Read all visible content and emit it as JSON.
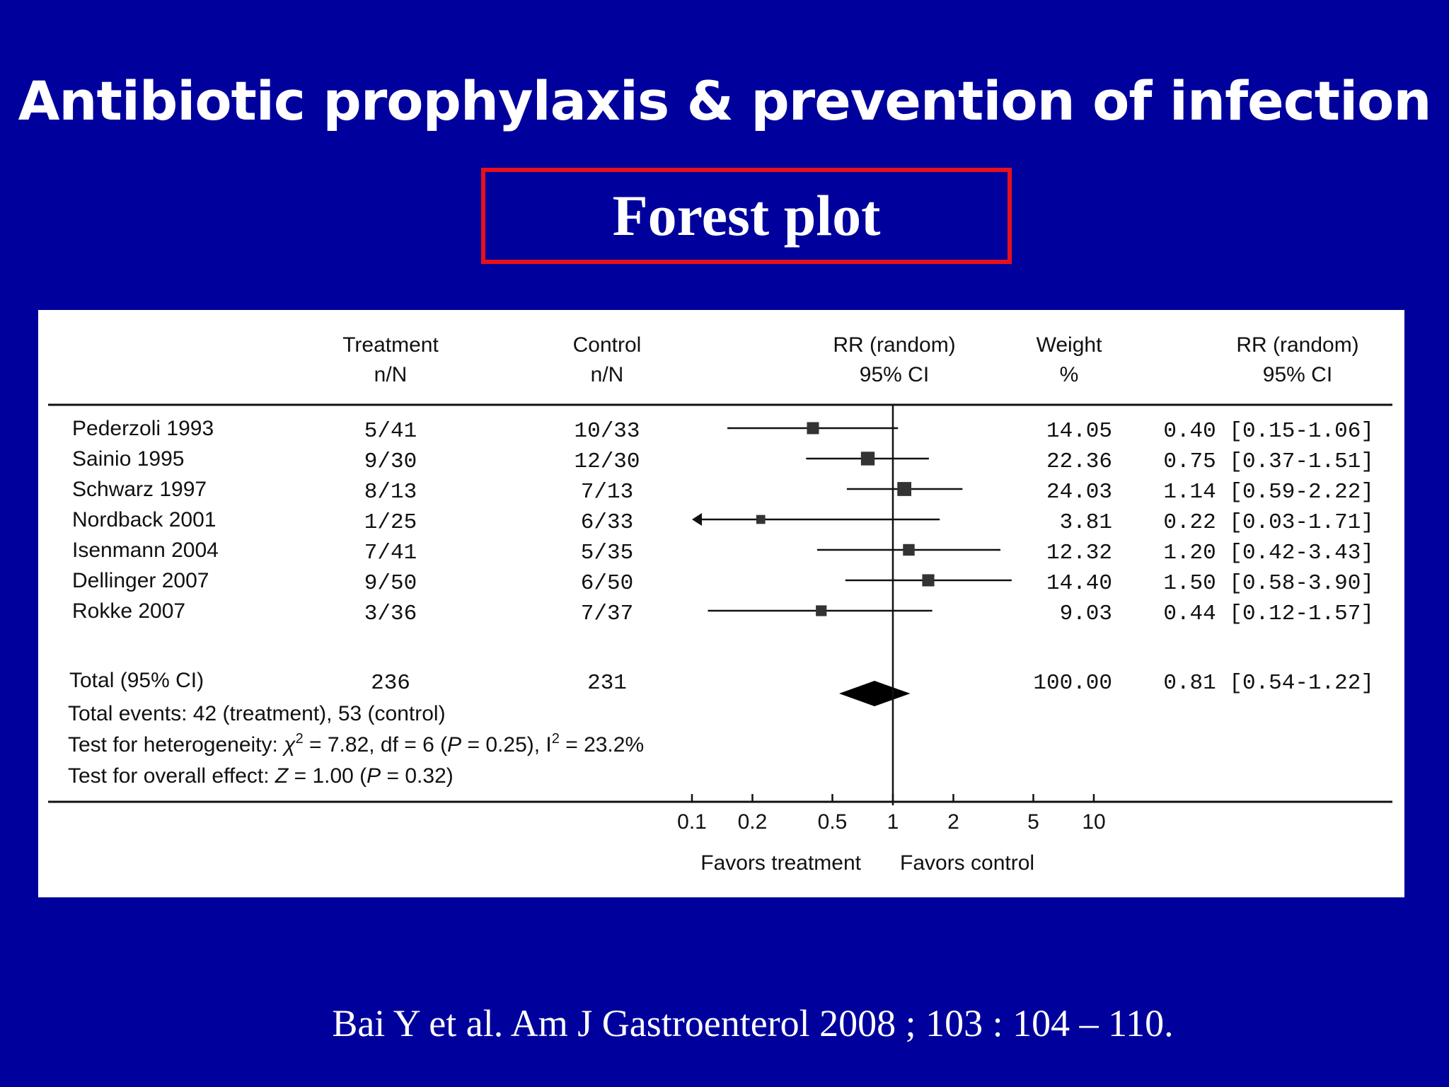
{
  "slide": {
    "title": "Antibiotic prophylaxis & prevention of infection",
    "subtitle": "Forest plot",
    "citation": "Bai Y et al. Am J Gastroenterol 2008 ; 103 : 104 – 110."
  },
  "colors": {
    "background": "#00009c",
    "subtitle_border": "#e8101a",
    "panel": "#ffffff",
    "marks": "#111111"
  },
  "chart_data": {
    "type": "forest",
    "xscale": "log",
    "xlim": [
      0.1,
      10
    ],
    "reference_line": 1,
    "headers": {
      "treatment": [
        "Treatment",
        "n/N"
      ],
      "control": [
        "Control",
        "n/N"
      ],
      "plot": [
        "RR (random)",
        "95% CI"
      ],
      "weight": [
        "Weight",
        "%"
      ],
      "estimate": [
        "RR (random)",
        "95% CI"
      ]
    },
    "studies": [
      {
        "name": "Pederzoli 1993",
        "treatment": "5/41",
        "control": "10/33",
        "weight": "14.05",
        "rr": 0.4,
        "lo": 0.15,
        "hi": 1.06,
        "ci_text": "0.40 [0.15-1.06]"
      },
      {
        "name": "Sainio 1995",
        "treatment": "9/30",
        "control": "12/30",
        "weight": "22.36",
        "rr": 0.75,
        "lo": 0.37,
        "hi": 1.51,
        "ci_text": "0.75 [0.37-1.51]"
      },
      {
        "name": "Schwarz 1997",
        "treatment": "8/13",
        "control": "7/13",
        "weight": "24.03",
        "rr": 1.14,
        "lo": 0.59,
        "hi": 2.22,
        "ci_text": "1.14 [0.59-2.22]"
      },
      {
        "name": "Nordback 2001",
        "treatment": "1/25",
        "control": "6/33",
        "weight": "3.81",
        "rr": 0.22,
        "lo": 0.03,
        "hi": 1.71,
        "ci_text": "0.22 [0.03-1.71]"
      },
      {
        "name": "Isenmann 2004",
        "treatment": "7/41",
        "control": "5/35",
        "weight": "12.32",
        "rr": 1.2,
        "lo": 0.42,
        "hi": 3.43,
        "ci_text": "1.20 [0.42-3.43]"
      },
      {
        "name": "Dellinger 2007",
        "treatment": "9/50",
        "control": "6/50",
        "weight": "14.40",
        "rr": 1.5,
        "lo": 0.58,
        "hi": 3.9,
        "ci_text": "1.50 [0.58-3.90]"
      },
      {
        "name": "Rokke 2007",
        "treatment": "3/36",
        "control": "7/37",
        "weight": "9.03",
        "rr": 0.44,
        "lo": 0.12,
        "hi": 1.57,
        "ci_text": "0.44 [0.12-1.57]"
      }
    ],
    "total": {
      "name": "Total (95% CI)",
      "treatment": "236",
      "control": "231",
      "weight": "100.00",
      "rr": 0.81,
      "lo": 0.54,
      "hi": 1.22,
      "ci_text": "0.81 [0.54-1.22]"
    },
    "notes": {
      "events": "Total events: 42 (treatment), 53 (control)",
      "heterogeneity_prefix": "Test for heterogeneity: ",
      "chi_symbol": "χ",
      "chi_sup": "2",
      "heterogeneity_mid": " = 7.82, df = 6 (",
      "p_symbol": "P",
      "heterogeneity_p": " = 0.25), I",
      "i_sup": "2",
      "heterogeneity_end": " = 23.2%",
      "overall_prefix": "Test for overall effect: ",
      "z_symbol": "Z",
      "overall_mid": " = 1.00 (",
      "overall_end": " = 0.32)"
    },
    "ticks": [
      {
        "value": 0.1,
        "label": "0.1"
      },
      {
        "value": 0.2,
        "label": "0.2"
      },
      {
        "value": 0.5,
        "label": "0.5"
      },
      {
        "value": 1,
        "label": "1"
      },
      {
        "value": 2,
        "label": "2"
      },
      {
        "value": 5,
        "label": "5"
      },
      {
        "value": 10,
        "label": "10"
      }
    ],
    "favors_left": "Favors treatment",
    "favors_right": "Favors control"
  }
}
